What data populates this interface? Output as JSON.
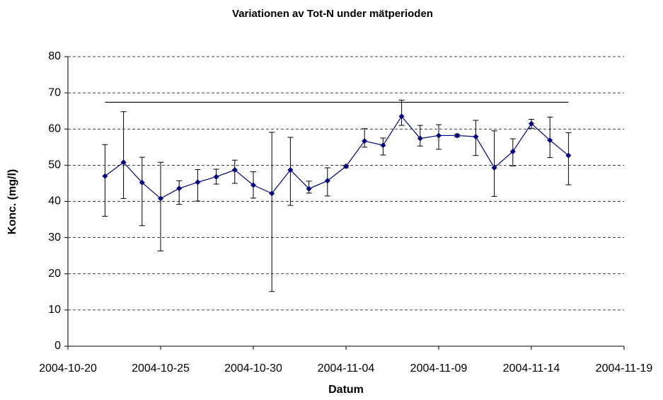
{
  "chart_data": {
    "type": "line",
    "title": "Variationen av Tot-N under mätperioden",
    "x_label": "Datum",
    "y_label": "Konc. (mg/l)",
    "x": [
      "2004-10-22",
      "2004-10-23",
      "2004-10-24",
      "2004-10-25",
      "2004-10-26",
      "2004-10-27",
      "2004-10-28",
      "2004-10-29",
      "2004-10-30",
      "2004-10-31",
      "2004-11-01",
      "2004-11-02",
      "2004-11-03",
      "2004-11-04",
      "2004-11-05",
      "2004-11-06",
      "2004-11-07",
      "2004-11-08",
      "2004-11-09",
      "2004-11-10",
      "2004-11-11",
      "2004-11-12",
      "2004-11-13",
      "2004-11-14",
      "2004-11-15",
      "2004-11-16"
    ],
    "series": [
      {
        "color": "#000080",
        "values": [
          47,
          50.8,
          45.2,
          40.8,
          43.6,
          45.3,
          46.8,
          48.7,
          44.5,
          42.2,
          48.7,
          43.5,
          45.7,
          49.7,
          56.7,
          55.5,
          63.5,
          57.4,
          58.2,
          58.2,
          57.9,
          49.3,
          53.8,
          61.5,
          56.9,
          52.7
        ],
        "lower": [
          35.9,
          40.8,
          33.3,
          26.3,
          39.2,
          40.1,
          44.8,
          45,
          40.9,
          15.1,
          38.9,
          42.3,
          41.5,
          49.3,
          55,
          52.8,
          61,
          55.3,
          54.4,
          57.8,
          52.7,
          41.4,
          49.8,
          60.2,
          52.1,
          44.6
        ],
        "upper": [
          55.7,
          64.8,
          52.2,
          50.8,
          45.7,
          48.8,
          48.9,
          51.4,
          48.2,
          59.1,
          57.7,
          45.6,
          49.3,
          50,
          60.1,
          57.5,
          68,
          61,
          61.2,
          58.6,
          62.4,
          59.5,
          57.3,
          62.7,
          63.3,
          59
        ]
      }
    ],
    "reference_line": {
      "value": 67.4,
      "x": [
        "2004-10-22",
        "2004-11-16"
      ],
      "color": "#000000"
    },
    "xlim": [
      "2004-10-20",
      "2004-11-19"
    ],
    "xticks": [
      "2004-10-20",
      "2004-10-25",
      "2004-10-30",
      "2004-11-04",
      "2004-11-09",
      "2004-11-14",
      "2004-11-19"
    ],
    "ylim": [
      0,
      80
    ],
    "yticks": [
      0,
      10,
      20,
      30,
      40,
      50,
      60,
      70,
      80
    ],
    "grid": true
  }
}
